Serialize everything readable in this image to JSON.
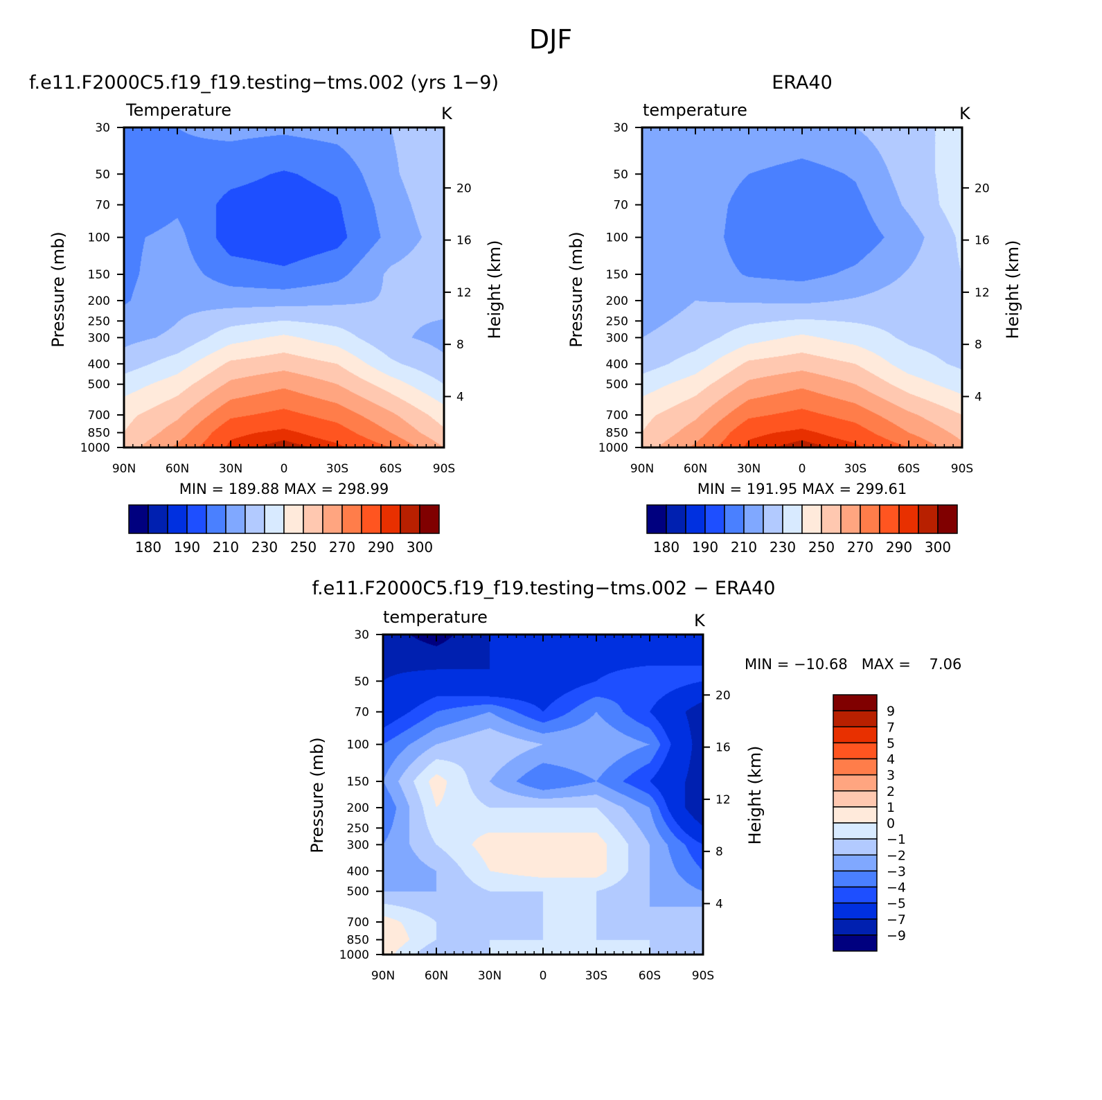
{
  "figure": {
    "title": "DJF"
  },
  "panels": [
    {
      "id": "model",
      "title": "f.e11.F2000C5.f19_f19.testing−tms.002 (yrs 1−9)",
      "left_label": "Temperature",
      "units": "K",
      "ylabel": "Pressure (mb)",
      "ylabel2": "Height (km)",
      "stats": "MIN = 189.88   MAX = 298.99"
    },
    {
      "id": "obs",
      "title": "ERA40",
      "left_label": "temperature",
      "units": "K",
      "ylabel": "Pressure (mb)",
      "ylabel2": "Height (km)",
      "stats": "MIN = 191.95   MAX = 299.61"
    },
    {
      "id": "diff",
      "title": "f.e11.F2000C5.f19_f19.testing−tms.002 − ERA40",
      "left_label": "temperature",
      "units": "K",
      "ylabel": "Pressure (mb)",
      "ylabel2": "Height (km)",
      "stats": "MIN = −10.68   MAX =    7.06"
    }
  ],
  "axes": {
    "x_ticks": [
      "90N",
      "60N",
      "30N",
      "0",
      "30S",
      "60S",
      "90S"
    ],
    "x_values": [
      90,
      60,
      30,
      0,
      -30,
      -60,
      -90
    ],
    "pressure_ticks": [
      "30",
      "50",
      "70",
      "100",
      "150",
      "200",
      "250",
      "300",
      "400",
      "500",
      "700",
      "850",
      "1000"
    ],
    "pressure_values": [
      30,
      50,
      70,
      100,
      150,
      200,
      250,
      300,
      400,
      500,
      700,
      850,
      1000
    ],
    "height_ticks": [
      "4",
      "8",
      "12",
      "16",
      "20"
    ],
    "height_values": [
      4,
      8,
      12,
      16,
      20
    ],
    "pressure_scale": "log"
  },
  "colorbars": {
    "abs": {
      "orientation": "horizontal",
      "colors": [
        "#00007f",
        "#0020b0",
        "#0030e0",
        "#1e4fff",
        "#4a80ff",
        "#80a8ff",
        "#b2caff",
        "#d8eaff",
        "#ffeadb",
        "#ffc8b0",
        "#ffa580",
        "#ff7d4a",
        "#ff5520",
        "#e83000",
        "#b82000",
        "#800000"
      ],
      "labels": [
        "180",
        "190",
        "210",
        "230",
        "250",
        "270",
        "290",
        "300"
      ]
    },
    "diff": {
      "orientation": "vertical",
      "colors": [
        "#800000",
        "#b82000",
        "#e83000",
        "#ff5520",
        "#ff7d4a",
        "#ffa580",
        "#ffc8b0",
        "#ffeadb",
        "#d8eaff",
        "#b2caff",
        "#80a8ff",
        "#4a80ff",
        "#1e4fff",
        "#0030e0",
        "#0020b0",
        "#00007f"
      ],
      "labels": [
        "9",
        "7",
        "5",
        "4",
        "3",
        "2",
        "1",
        "0",
        "−1",
        "−2",
        "−3",
        "−4",
        "−5",
        "−7",
        "−9"
      ]
    }
  },
  "chart_data": [
    {
      "type": "heatmap",
      "title": "f.e11.F2000C5.f19_f19.testing−tms.002 (yrs 1−9)",
      "variable": "Temperature",
      "units": "K",
      "x": [
        90,
        60,
        30,
        0,
        -30,
        -60,
        -90
      ],
      "y_pressure_mb": [
        30,
        50,
        70,
        100,
        150,
        200,
        300,
        400,
        500,
        700,
        850,
        1000
      ],
      "values": [
        [
          205,
          210,
          213,
          212,
          214,
          220,
          228
        ],
        [
          200,
          207,
          203,
          199,
          203,
          218,
          230
        ],
        [
          201,
          208,
          197,
          195,
          199,
          215,
          228
        ],
        [
          208,
          213,
          195,
          193,
          197,
          213,
          225
        ],
        [
          208,
          215,
          205,
          202,
          207,
          222,
          227
        ],
        [
          209,
          217,
          216,
          216,
          218,
          221,
          223
        ],
        [
          217,
          222,
          236,
          242,
          235,
          222,
          217
        ],
        [
          225,
          235,
          252,
          256,
          250,
          232,
          222
        ],
        [
          235,
          245,
          262,
          268,
          260,
          245,
          230
        ],
        [
          247,
          258,
          278,
          283,
          276,
          262,
          245
        ],
        [
          250,
          265,
          288,
          292,
          285,
          270,
          252
        ],
        [
          255,
          272,
          292,
          298,
          292,
          280,
          260
        ]
      ],
      "min": 189.88,
      "max": 298.99
    },
    {
      "type": "heatmap",
      "title": "ERA40",
      "variable": "temperature",
      "units": "K",
      "x": [
        90,
        60,
        30,
        0,
        -30,
        -60,
        -90
      ],
      "y_pressure_mb": [
        30,
        50,
        70,
        100,
        150,
        200,
        300,
        400,
        500,
        700,
        850,
        1000
      ],
      "values": [
        [
          213,
          220,
          220,
          218,
          220,
          227,
          233
        ],
        [
          211,
          218,
          210,
          206,
          211,
          225,
          235
        ],
        [
          210,
          218,
          205,
          202,
          207,
          222,
          236
        ],
        [
          212,
          218,
          203,
          200,
          204,
          215,
          232
        ],
        [
          210,
          217,
          209,
          207,
          212,
          221,
          230
        ],
        [
          214,
          220,
          219,
          218,
          221,
          225,
          228
        ],
        [
          220,
          225,
          236,
          242,
          236,
          228,
          225
        ],
        [
          225,
          235,
          252,
          256,
          250,
          235,
          228
        ],
        [
          235,
          245,
          262,
          268,
          260,
          245,
          235
        ],
        [
          247,
          258,
          278,
          283,
          276,
          262,
          250
        ],
        [
          250,
          265,
          288,
          292,
          285,
          270,
          257
        ],
        [
          255,
          272,
          292,
          298,
          292,
          280,
          262
        ]
      ],
      "min": 191.95,
      "max": 299.61
    },
    {
      "type": "heatmap",
      "title": "f.e11.F2000C5.f19_f19.testing−tms.002 − ERA40",
      "variable": "temperature",
      "units": "K",
      "x": [
        90,
        60,
        30,
        0,
        -30,
        -60,
        -90
      ],
      "y_pressure_mb": [
        30,
        50,
        70,
        100,
        150,
        200,
        300,
        400,
        500,
        700,
        850,
        1000
      ],
      "values": [
        [
          -8,
          -10,
          -7,
          -6,
          -6,
          -7,
          -5
        ],
        [
          -7,
          -6,
          -7,
          -6,
          -5,
          -4,
          -5
        ],
        [
          -6,
          -4,
          -3,
          -5,
          -3,
          -5,
          -8
        ],
        [
          -4,
          -2,
          -1,
          -2,
          -2,
          -3,
          -8
        ],
        [
          -3,
          0.5,
          -2,
          -4,
          -3,
          -5,
          -8
        ],
        [
          -4,
          0,
          -1,
          -1,
          -1,
          -3,
          -9
        ],
        [
          -3,
          -1,
          0.5,
          0.5,
          0.5,
          -2,
          -5
        ],
        [
          -3,
          -2,
          0,
          0.5,
          0.5,
          -2,
          -4
        ],
        [
          -2,
          -2,
          -1,
          -1,
          -1,
          -2,
          -3
        ],
        [
          0.5,
          -1,
          -2,
          -1,
          -1,
          -2,
          -1
        ],
        [
          1,
          -1,
          -1,
          -1,
          -1,
          -1,
          -2
        ],
        [
          0.5,
          -2,
          -1,
          -1,
          -1,
          -1,
          -1
        ]
      ],
      "min": -10.68,
      "max": 7.06
    }
  ]
}
